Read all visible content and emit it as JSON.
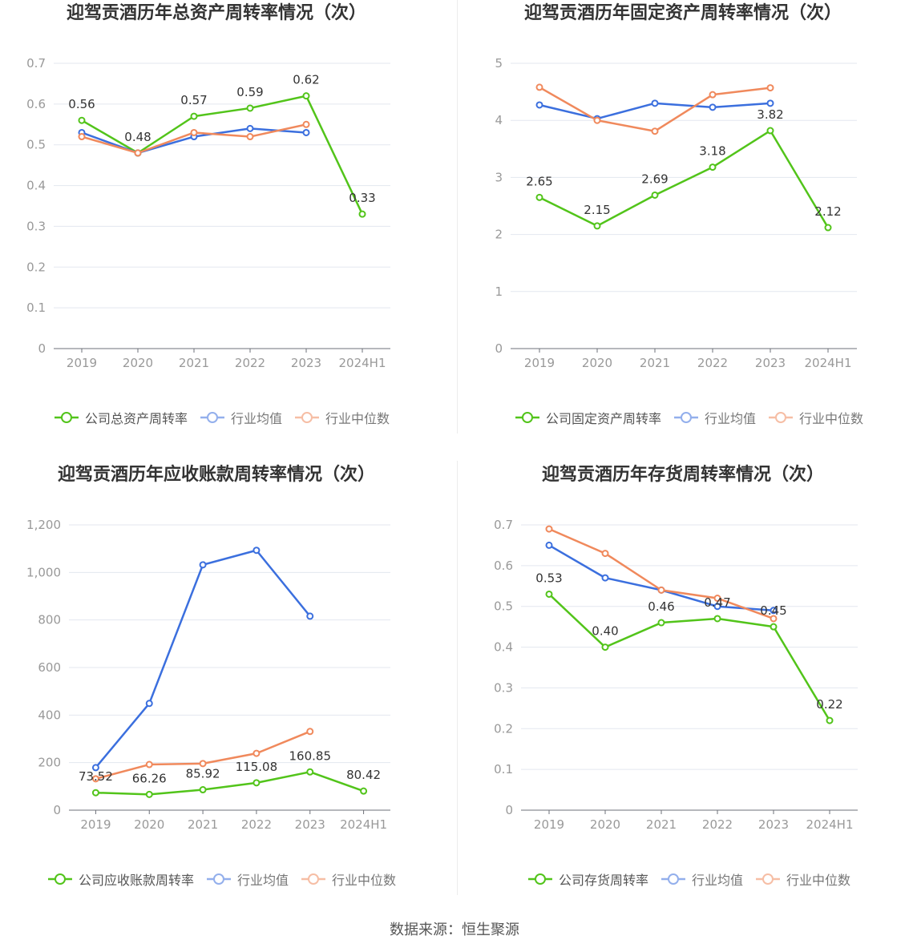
{
  "source": "数据来源：恒生聚源",
  "chart_data": [
    {
      "type": "line",
      "title": "迎驾贡酒历年总资产周转率情况（次）",
      "categories": [
        "2019",
        "2020",
        "2021",
        "2022",
        "2023",
        "2024H1"
      ],
      "ylim": [
        0,
        0.7
      ],
      "ytick_labels": [
        "0",
        "0.1",
        "0.2",
        "0.3",
        "0.4",
        "0.5",
        "0.6",
        "0.7"
      ],
      "grid": true,
      "legend_position": "bottom",
      "label_decimals": 2,
      "series": [
        {
          "name": "公司总资产周转率",
          "color": "#52c41a",
          "show_labels": true,
          "values": [
            0.56,
            0.48,
            0.57,
            0.59,
            0.62,
            0.33
          ]
        },
        {
          "name": "行业均值",
          "color": "#3b6fde",
          "show_labels": false,
          "values": [
            0.53,
            0.48,
            0.52,
            0.54,
            0.53,
            null
          ]
        },
        {
          "name": "行业中位数",
          "color": "#f0895c",
          "show_labels": false,
          "values": [
            0.52,
            0.48,
            0.53,
            0.52,
            0.55,
            null
          ]
        }
      ]
    },
    {
      "type": "line",
      "title": "迎驾贡酒历年固定资产周转率情况（次）",
      "categories": [
        "2019",
        "2020",
        "2021",
        "2022",
        "2023",
        "2024H1"
      ],
      "ylim": [
        0,
        5
      ],
      "ytick_labels": [
        "0",
        "1",
        "2",
        "3",
        "4",
        "5"
      ],
      "grid": true,
      "legend_position": "bottom",
      "label_decimals": 2,
      "series": [
        {
          "name": "公司固定资产周转率",
          "color": "#52c41a",
          "show_labels": true,
          "values": [
            2.65,
            2.15,
            2.69,
            3.18,
            3.82,
            2.12
          ]
        },
        {
          "name": "行业均值",
          "color": "#3b6fde",
          "show_labels": false,
          "values": [
            4.27,
            4.03,
            4.3,
            4.23,
            4.3,
            null
          ]
        },
        {
          "name": "行业中位数",
          "color": "#f0895c",
          "show_labels": false,
          "values": [
            4.58,
            4.0,
            3.81,
            4.45,
            4.57,
            null
          ]
        }
      ]
    },
    {
      "type": "line",
      "title": "迎驾贡酒历年应收账款周转率情况（次）",
      "categories": [
        "2019",
        "2020",
        "2021",
        "2022",
        "2023",
        "2024H1"
      ],
      "ylim": [
        0,
        1200
      ],
      "ytick_labels": [
        "0",
        "200",
        "400",
        "600",
        "800",
        "1,000",
        "1,200"
      ],
      "grid": true,
      "legend_position": "bottom",
      "label_decimals": 2,
      "series": [
        {
          "name": "公司应收账款周转率",
          "color": "#52c41a",
          "show_labels": true,
          "values": [
            73.52,
            66.26,
            85.92,
            115.08,
            160.85,
            80.42
          ]
        },
        {
          "name": "行业均值",
          "color": "#3b6fde",
          "show_labels": false,
          "values": [
            179,
            449,
            1032,
            1093,
            816,
            null
          ]
        },
        {
          "name": "行业中位数",
          "color": "#f0895c",
          "show_labels": false,
          "values": [
            132,
            192,
            196,
            239,
            331,
            null
          ]
        }
      ]
    },
    {
      "type": "line",
      "title": "迎驾贡酒历年存货周转率情况（次）",
      "categories": [
        "2019",
        "2020",
        "2021",
        "2022",
        "2023",
        "2024H1"
      ],
      "ylim": [
        0,
        0.7
      ],
      "ytick_labels": [
        "0",
        "0.1",
        "0.2",
        "0.3",
        "0.4",
        "0.5",
        "0.6",
        "0.7"
      ],
      "grid": true,
      "legend_position": "bottom",
      "label_decimals": 2,
      "series": [
        {
          "name": "公司存货周转率",
          "color": "#52c41a",
          "show_labels": true,
          "values": [
            0.53,
            0.4,
            0.46,
            0.47,
            0.45,
            0.22
          ]
        },
        {
          "name": "行业均值",
          "color": "#3b6fde",
          "show_labels": false,
          "values": [
            0.65,
            0.57,
            0.54,
            0.5,
            0.49,
            null
          ]
        },
        {
          "name": "行业中位数",
          "color": "#f0895c",
          "show_labels": false,
          "values": [
            0.69,
            0.63,
            0.54,
            0.52,
            0.47,
            null
          ]
        }
      ]
    }
  ]
}
